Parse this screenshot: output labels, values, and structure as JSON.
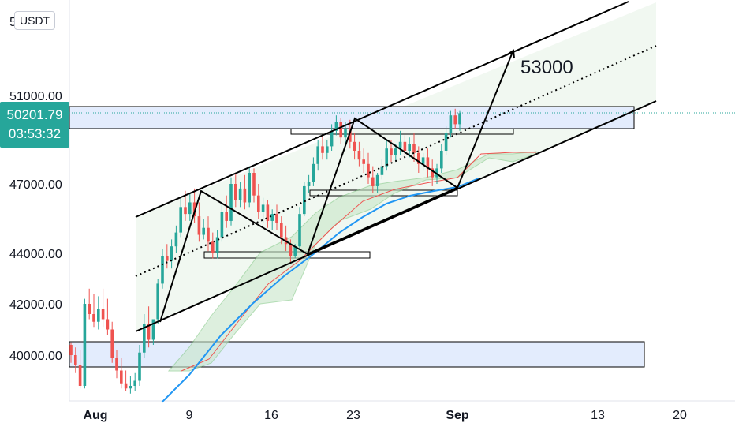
{
  "header": {
    "currency": "USDT",
    "top_tick_partial": "5     0"
  },
  "last_price": {
    "value": "50201.79",
    "countdown": "03:53:32"
  },
  "target_label": "53000",
  "chart_data": {
    "type": "candlestick",
    "x_axis_labels": [
      "Aug",
      "9",
      "16",
      "23",
      "Sep",
      "13",
      "20"
    ],
    "y_axis_labels": [
      "51000.00",
      "47000.00",
      "44000.00",
      "42000.00",
      "40000.00"
    ],
    "ylim": [
      38500,
      54000
    ],
    "colors": {
      "up": "#26a69a",
      "down": "#ef5350",
      "ma": "#2196f3",
      "channel": "#000000",
      "zone": "#e3ecfd",
      "cloud": "#dff0df"
    },
    "candles": [
      [
        40400,
        40500,
        40000,
        39700
      ],
      [
        40000,
        40300,
        39600,
        39300
      ],
      [
        39600,
        40200,
        38800,
        38700
      ],
      [
        38800,
        42200,
        42000,
        38700
      ],
      [
        42000,
        42600,
        41600,
        41400
      ],
      [
        41600,
        42400,
        41300,
        41100
      ],
      [
        41300,
        42300,
        41800,
        41000
      ],
      [
        41800,
        42600,
        41400,
        41100
      ],
      [
        41400,
        42200,
        41000,
        40800
      ],
      [
        41000,
        41300,
        39900,
        39700
      ],
      [
        39900,
        40200,
        39400,
        39100
      ],
      [
        39400,
        39900,
        38900,
        38700
      ],
      [
        38900,
        39400,
        38700,
        38600
      ],
      [
        38700,
        39200,
        38800,
        38500
      ],
      [
        38800,
        39300,
        39000,
        38600
      ],
      [
        39000,
        40400,
        40100,
        38800
      ],
      [
        40100,
        41600,
        41200,
        39900
      ],
      [
        41200,
        41900,
        40600,
        40300
      ],
      [
        40600,
        41400,
        41400,
        40400
      ],
      [
        41400,
        43000,
        42800,
        41200
      ],
      [
        42800,
        44200,
        43900,
        42600
      ],
      [
        43900,
        44400,
        43700,
        43400
      ],
      [
        43700,
        44600,
        44300,
        43400
      ],
      [
        44300,
        45200,
        44900,
        44000
      ],
      [
        44900,
        46400,
        46000,
        44700
      ],
      [
        46000,
        46700,
        45700,
        45400
      ],
      [
        45700,
        46600,
        46200,
        45400
      ],
      [
        46200,
        46800,
        45600,
        45300
      ],
      [
        45600,
        46200,
        44800,
        44500
      ],
      [
        44800,
        45500,
        45100,
        44600
      ],
      [
        45100,
        45600,
        44500,
        44100
      ],
      [
        44500,
        44900,
        44000,
        43800
      ],
      [
        44000,
        45000,
        44700,
        43800
      ],
      [
        44700,
        46200,
        45800,
        44500
      ],
      [
        45800,
        46500,
        45400,
        45100
      ],
      [
        45400,
        47300,
        47000,
        45200
      ],
      [
        47000,
        47500,
        46300,
        46000
      ],
      [
        46300,
        47100,
        46800,
        46000
      ],
      [
        46800,
        47400,
        46200,
        45900
      ],
      [
        46200,
        47800,
        47500,
        46000
      ],
      [
        47500,
        47700,
        46500,
        46200
      ],
      [
        46500,
        47000,
        45800,
        45500
      ],
      [
        45800,
        46400,
        46100,
        45300
      ],
      [
        46100,
        46300,
        45400,
        45100
      ],
      [
        45400,
        45900,
        45700,
        45000
      ],
      [
        45700,
        46100,
        45300,
        45000
      ],
      [
        45300,
        45600,
        44700,
        44400
      ],
      [
        44700,
        45200,
        44400,
        44100
      ],
      [
        44400,
        44600,
        43900,
        43600
      ],
      [
        43900,
        44400,
        44300,
        43800
      ],
      [
        44300,
        46000,
        45700,
        44200
      ],
      [
        45700,
        47100,
        46900,
        45600
      ],
      [
        46900,
        47400,
        47100,
        46600
      ],
      [
        47100,
        48200,
        47900,
        46900
      ],
      [
        47900,
        49000,
        48700,
        47600
      ],
      [
        48700,
        49200,
        48400,
        48100
      ],
      [
        48400,
        49000,
        48700,
        48100
      ],
      [
        48700,
        49700,
        49400,
        48500
      ],
      [
        49400,
        50100,
        49800,
        49200
      ],
      [
        49800,
        50000,
        49100,
        48800
      ],
      [
        49100,
        49800,
        49500,
        48800
      ],
      [
        49500,
        49900,
        48900,
        48600
      ],
      [
        48900,
        49300,
        48500,
        48100
      ],
      [
        48500,
        48900,
        48100,
        47800
      ],
      [
        48100,
        48600,
        47900,
        47500
      ],
      [
        47900,
        48400,
        47300,
        47000
      ],
      [
        47300,
        47800,
        46900,
        46600
      ],
      [
        46900,
        47500,
        47400,
        46600
      ],
      [
        47400,
        48100,
        47800,
        47200
      ],
      [
        47800,
        49000,
        48600,
        47600
      ],
      [
        48600,
        49000,
        48300,
        48000
      ],
      [
        48300,
        48800,
        48600,
        48000
      ],
      [
        48600,
        49400,
        48900,
        48300
      ],
      [
        48900,
        49200,
        48500,
        48200
      ],
      [
        48500,
        49100,
        48800,
        48200
      ],
      [
        48800,
        49300,
        48400,
        48000
      ],
      [
        48400,
        48700,
        47900,
        47500
      ],
      [
        47900,
        48400,
        48200,
        47600
      ],
      [
        48200,
        48600,
        47700,
        47300
      ],
      [
        47700,
        48100,
        47300,
        46900
      ],
      [
        47300,
        47900,
        47700,
        47000
      ],
      [
        47700,
        48800,
        48500,
        47500
      ],
      [
        48500,
        49600,
        49300,
        48300
      ],
      [
        49300,
        50300,
        50100,
        49100
      ],
      [
        50100,
        50400,
        49700,
        49500
      ],
      [
        49700,
        50300,
        50200,
        49400
      ]
    ]
  }
}
